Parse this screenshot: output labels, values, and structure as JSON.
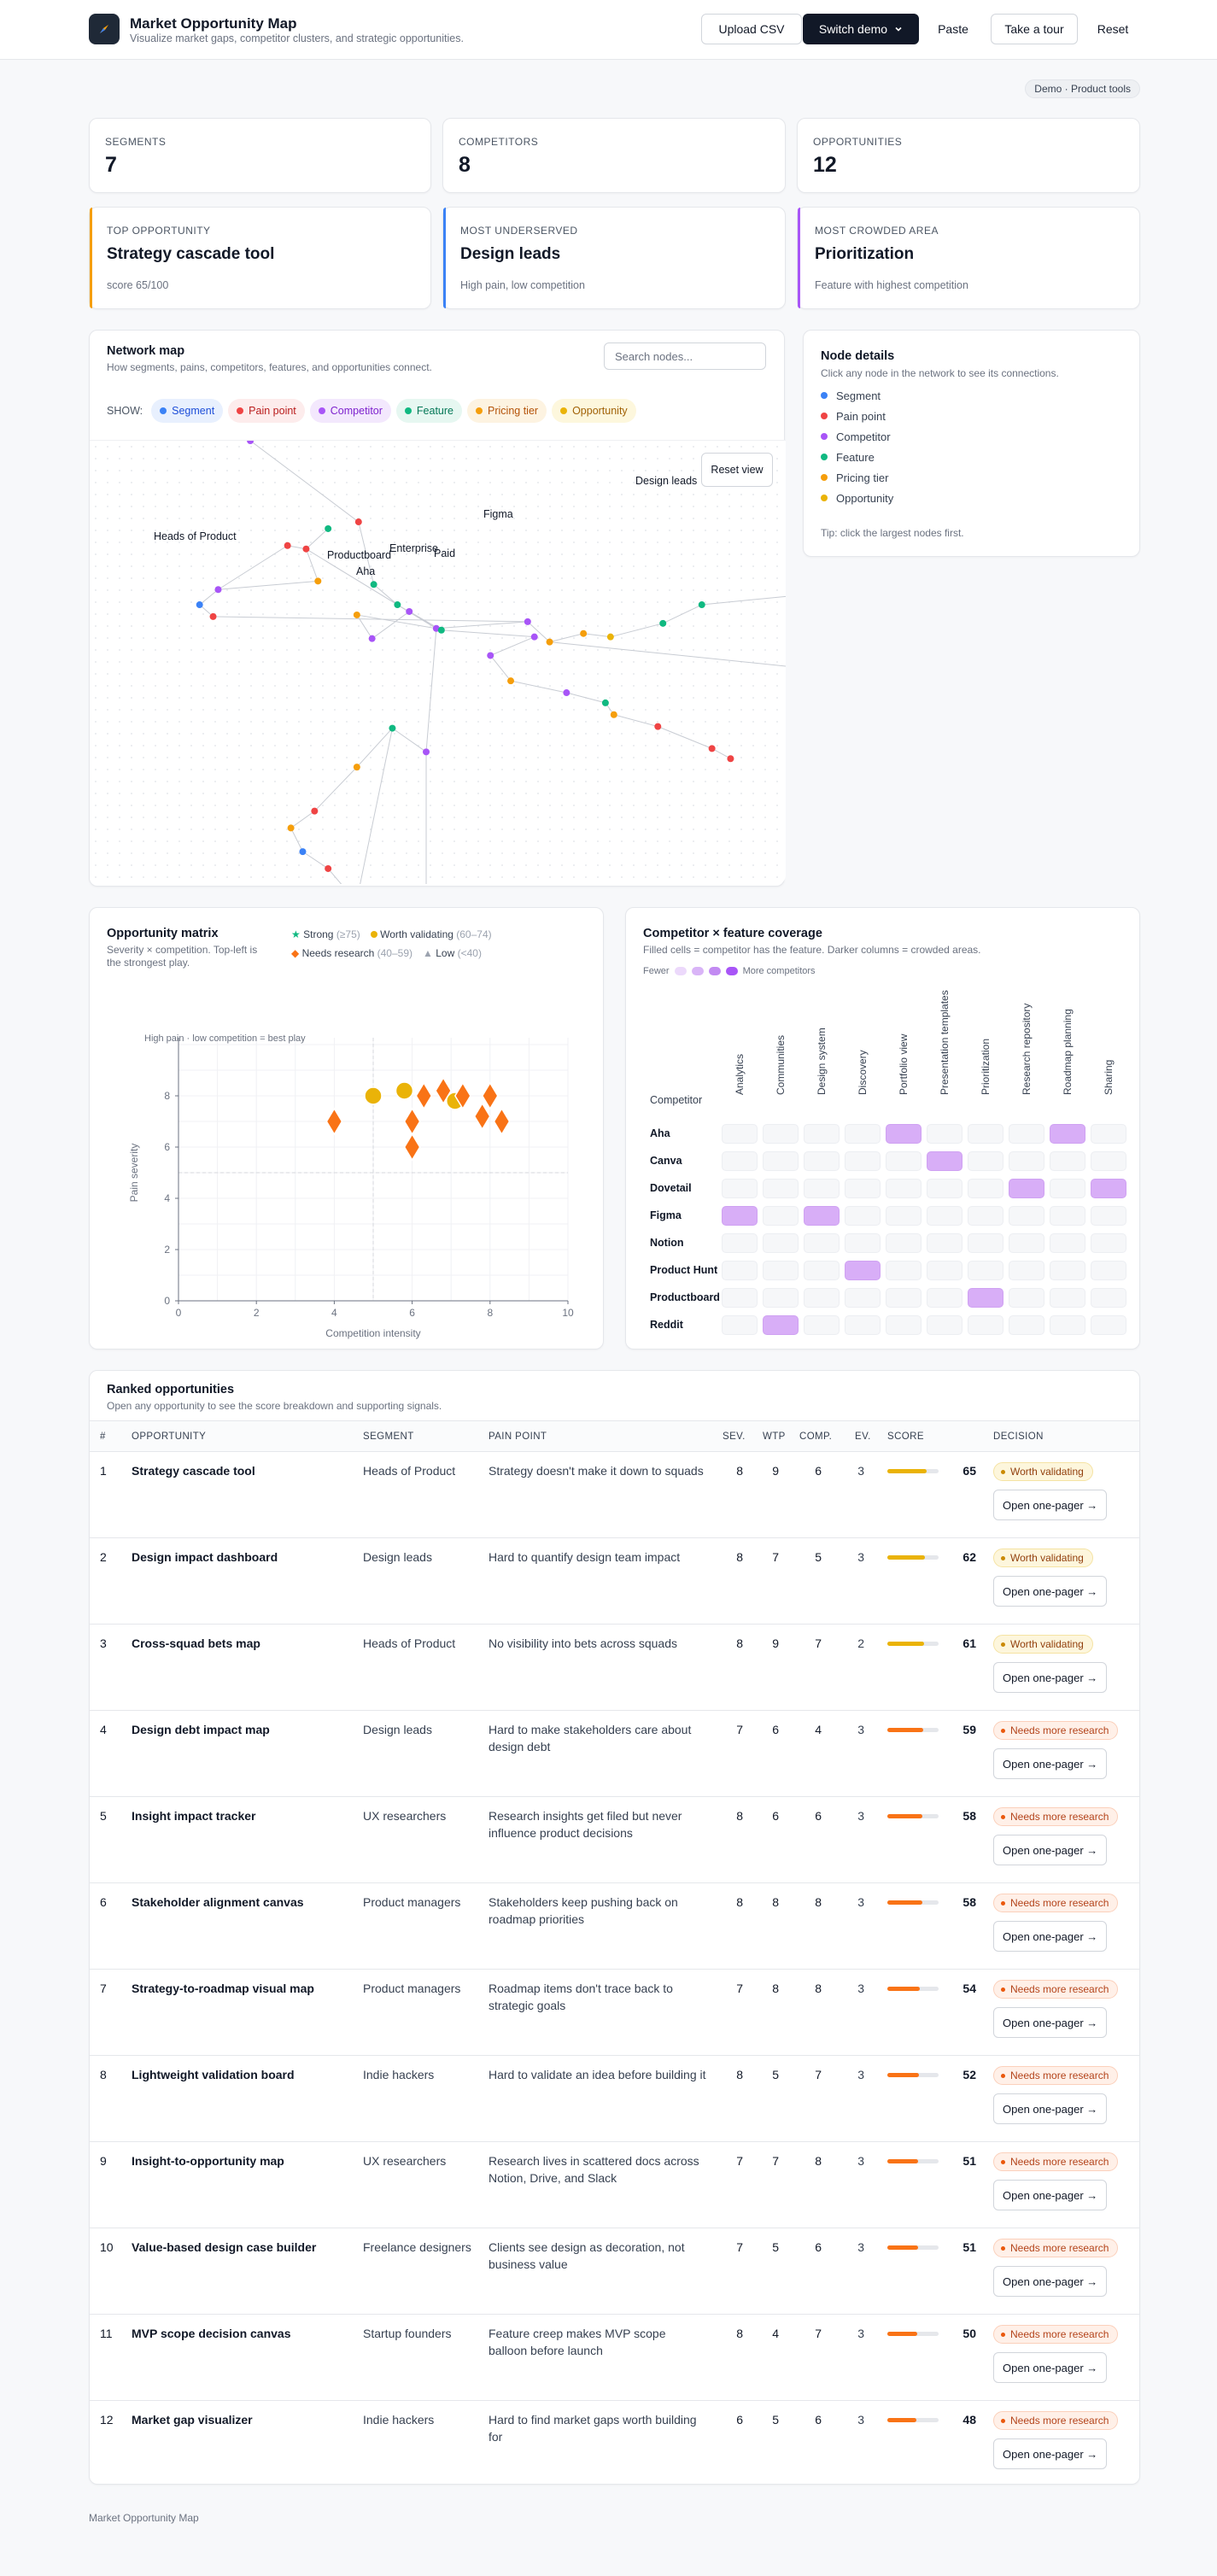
{
  "app": {
    "title": "Market Opportunity Map",
    "subtitle": "Visualize market gaps, competitor clusters, and strategic opportunities.",
    "buttons": {
      "upload": "Upload CSV",
      "switch": "Switch demo",
      "paste": "Paste",
      "tour": "Take a tour",
      "reset": "Reset"
    },
    "demo_badge": "Demo · Product tools"
  },
  "stats": [
    {
      "label": "Segments",
      "value": "7"
    },
    {
      "label": "Competitors",
      "value": "8"
    },
    {
      "label": "Opportunities",
      "value": "12"
    }
  ],
  "highlights": [
    {
      "label": "Top opportunity",
      "title": "Strategy cascade tool",
      "sub": "score 65/100",
      "color": "#f59e0b"
    },
    {
      "label": "Most underserved",
      "title": "Design leads",
      "sub": "High pain, low competition",
      "color": "#3b82f6"
    },
    {
      "label": "Most crowded area",
      "title": "Prioritization",
      "sub": "Feature with highest competition",
      "color": "#a855f7"
    }
  ],
  "network": {
    "title": "Network map",
    "subtitle": "How segments, pains, competitors, features, and opportunities connect.",
    "search_placeholder": "Search nodes...",
    "show_label": "SHOW:",
    "filters": [
      {
        "label": "Segment",
        "color": "#3b82f6",
        "bg": "#e8f0fe",
        "fg": "#1d4ed8"
      },
      {
        "label": "Pain point",
        "color": "#ef4444",
        "bg": "#fdecec",
        "fg": "#b91c1c"
      },
      {
        "label": "Competitor",
        "color": "#a855f7",
        "bg": "#f3e8fd",
        "fg": "#7e22ce"
      },
      {
        "label": "Feature",
        "color": "#10b981",
        "bg": "#e6f7f1",
        "fg": "#047857"
      },
      {
        "label": "Pricing tier",
        "color": "#f59e0b",
        "bg": "#fdf3e1",
        "fg": "#b45309"
      },
      {
        "label": "Opportunity",
        "color": "#eab308",
        "bg": "#fdf7dd",
        "fg": "#a16207"
      }
    ],
    "reset_view": "Reset view",
    "labels": [
      "Design leads",
      "Heads of Product",
      "Figma",
      "Enterprise",
      "Paid",
      "Productboard",
      "Aha"
    ]
  },
  "node_details": {
    "title": "Node details",
    "subtitle": "Click any node in the network to see its connections.",
    "legend": [
      {
        "label": "Segment",
        "color": "#3b82f6"
      },
      {
        "label": "Pain point",
        "color": "#ef4444"
      },
      {
        "label": "Competitor",
        "color": "#a855f7"
      },
      {
        "label": "Feature",
        "color": "#10b981"
      },
      {
        "label": "Pricing tier",
        "color": "#f59e0b"
      },
      {
        "label": "Opportunity",
        "color": "#eab308"
      }
    ],
    "tip": "Tip: click the largest nodes first."
  },
  "matrix": {
    "title": "Opportunity matrix",
    "subtitle_1": "Severity × competition. Top-left is",
    "subtitle_2": "the strongest play.",
    "legend": [
      {
        "label": "Strong",
        "range": "(≥75)",
        "color": "#10b981",
        "shape": "star"
      },
      {
        "label": "Worth validating",
        "range": "(60–74)",
        "color": "#eab308",
        "shape": "circle"
      },
      {
        "label": "Needs research",
        "range": "(40–59)",
        "color": "#f97316",
        "shape": "diamond"
      },
      {
        "label": "Low",
        "range": "(<40)",
        "color": "#9ca3af",
        "shape": "triangle"
      }
    ],
    "annotation": "High pain · low competition = best play"
  },
  "chart_data": {
    "type": "scatter",
    "xlabel": "Competition intensity",
    "ylabel": "Pain severity",
    "xlim": [
      0,
      10
    ],
    "ylim": [
      0,
      10
    ],
    "xticks": [
      0,
      2,
      4,
      6,
      8,
      10
    ],
    "yticks": [
      0,
      2,
      4,
      6,
      8
    ],
    "reference_lines": {
      "x": 5,
      "y": 5
    },
    "grid": true,
    "series": [
      {
        "name": "Worth validating",
        "points": [
          {
            "x": 5,
            "y": 8
          },
          {
            "x": 5.8,
            "y": 8.2
          },
          {
            "x": 7.1,
            "y": 7.8
          }
        ]
      },
      {
        "name": "Needs research",
        "points": [
          {
            "x": 4,
            "y": 7
          },
          {
            "x": 6,
            "y": 7
          },
          {
            "x": 6,
            "y": 6
          },
          {
            "x": 6.3,
            "y": 8
          },
          {
            "x": 6.8,
            "y": 8.2
          },
          {
            "x": 7.3,
            "y": 8
          },
          {
            "x": 7.8,
            "y": 7.2
          },
          {
            "x": 8,
            "y": 8
          },
          {
            "x": 8.3,
            "y": 7
          }
        ]
      }
    ]
  },
  "coverage": {
    "title": "Competitor × feature coverage",
    "subtitle": "Filled cells = competitor has the feature. Darker columns = crowded areas.",
    "scale_low": "Fewer",
    "scale_high": "More competitors",
    "row_header": "Competitor",
    "features": [
      "Analytics",
      "Communities",
      "Design system",
      "Discovery",
      "Portfolio view",
      "Presentation templates",
      "Prioritization",
      "Research repository",
      "Roadmap planning",
      "Sharing"
    ],
    "competitors": [
      "Aha",
      "Canva",
      "Dovetail",
      "Figma",
      "Notion",
      "Product Hunt",
      "Productboard",
      "Reddit"
    ],
    "filled": [
      [
        0,
        4
      ],
      [
        0,
        8
      ],
      [
        1,
        5
      ],
      [
        2,
        7
      ],
      [
        2,
        9
      ],
      [
        3,
        0
      ],
      [
        3,
        2
      ],
      [
        5,
        3
      ],
      [
        6,
        6
      ],
      [
        7,
        1
      ]
    ]
  },
  "ranked": {
    "title": "Ranked opportunities",
    "subtitle": "Open any opportunity to see the score breakdown and supporting signals.",
    "columns": [
      "#",
      "Opportunity",
      "Segment",
      "Pain point",
      "Sev.",
      "WTP",
      "Comp.",
      "Ev.",
      "Score",
      "Decision"
    ],
    "open_label": "Open one-pager →",
    "rows": [
      {
        "n": "1",
        "opp": "Strategy cascade tool",
        "seg": "Heads of Product",
        "pain": "Strategy doesn't make it down to squads",
        "sev": "8",
        "wtp": "9",
        "comp": "6",
        "ev": "3",
        "score": "65",
        "decision": "Worth validating",
        "kind": "wv"
      },
      {
        "n": "2",
        "opp": "Design impact dashboard",
        "seg": "Design leads",
        "pain": "Hard to quantify design team impact",
        "sev": "8",
        "wtp": "7",
        "comp": "5",
        "ev": "3",
        "score": "62",
        "decision": "Worth validating",
        "kind": "wv"
      },
      {
        "n": "3",
        "opp": "Cross-squad bets map",
        "seg": "Heads of Product",
        "pain": "No visibility into bets across squads",
        "sev": "8",
        "wtp": "9",
        "comp": "7",
        "ev": "2",
        "score": "61",
        "decision": "Worth validating",
        "kind": "wv"
      },
      {
        "n": "4",
        "opp": "Design debt impact map",
        "seg": "Design leads",
        "pain": "Hard to make stakeholders care about design debt",
        "sev": "7",
        "wtp": "6",
        "comp": "4",
        "ev": "3",
        "score": "59",
        "decision": "Needs more research",
        "kind": "nr"
      },
      {
        "n": "5",
        "opp": "Insight impact tracker",
        "seg": "UX researchers",
        "pain": "Research insights get filed but never influence product decisions",
        "sev": "8",
        "wtp": "6",
        "comp": "6",
        "ev": "3",
        "score": "58",
        "decision": "Needs more research",
        "kind": "nr"
      },
      {
        "n": "6",
        "opp": "Stakeholder alignment canvas",
        "seg": "Product managers",
        "pain": "Stakeholders keep pushing back on roadmap priorities",
        "sev": "8",
        "wtp": "8",
        "comp": "8",
        "ev": "3",
        "score": "58",
        "decision": "Needs more research",
        "kind": "nr"
      },
      {
        "n": "7",
        "opp": "Strategy-to-roadmap visual map",
        "seg": "Product managers",
        "pain": "Roadmap items don't trace back to strategic goals",
        "sev": "7",
        "wtp": "8",
        "comp": "8",
        "ev": "3",
        "score": "54",
        "decision": "Needs more research",
        "kind": "nr"
      },
      {
        "n": "8",
        "opp": "Lightweight validation board",
        "seg": "Indie hackers",
        "pain": "Hard to validate an idea before building it",
        "sev": "8",
        "wtp": "5",
        "comp": "7",
        "ev": "3",
        "score": "52",
        "decision": "Needs more research",
        "kind": "nr"
      },
      {
        "n": "9",
        "opp": "Insight-to-opportunity map",
        "seg": "UX researchers",
        "pain": "Research lives in scattered docs across Notion, Drive, and Slack",
        "sev": "7",
        "wtp": "7",
        "comp": "8",
        "ev": "3",
        "score": "51",
        "decision": "Needs more research",
        "kind": "nr"
      },
      {
        "n": "10",
        "opp": "Value-based design case builder",
        "seg": "Freelance designers",
        "pain": "Clients see design as decoration, not business value",
        "sev": "7",
        "wtp": "5",
        "comp": "6",
        "ev": "3",
        "score": "51",
        "decision": "Needs more research",
        "kind": "nr"
      },
      {
        "n": "11",
        "opp": "MVP scope decision canvas",
        "seg": "Startup founders",
        "pain": "Feature creep makes MVP scope balloon before launch",
        "sev": "8",
        "wtp": "4",
        "comp": "7",
        "ev": "3",
        "score": "50",
        "decision": "Needs more research",
        "kind": "nr"
      },
      {
        "n": "12",
        "opp": "Market gap visualizer",
        "seg": "Indie hackers",
        "pain": "Hard to find market gaps worth building for",
        "sev": "6",
        "wtp": "5",
        "comp": "6",
        "ev": "3",
        "score": "48",
        "decision": "Needs more research",
        "kind": "nr"
      }
    ]
  },
  "footer": "Market Opportunity Map"
}
